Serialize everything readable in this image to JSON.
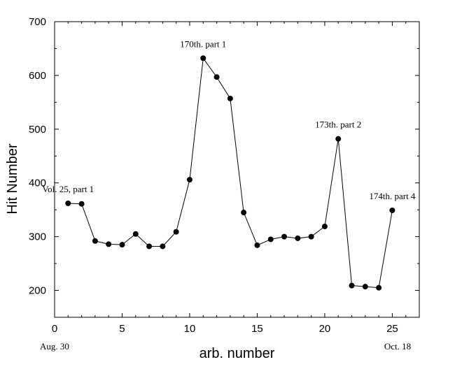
{
  "chart_data": {
    "type": "line",
    "xlabel": "arb. number",
    "ylabel": "Hit Number",
    "xlim": [
      0,
      27
    ],
    "ylim": [
      150,
      700
    ],
    "xticks": [
      0,
      5,
      10,
      15,
      20,
      25
    ],
    "yticks": [
      200,
      300,
      400,
      500,
      600,
      700
    ],
    "tick_labels_x": [
      "0",
      "5",
      "10",
      "15",
      "20",
      "25"
    ],
    "tick_labels_y": [
      "200",
      "300",
      "400",
      "500",
      "600",
      "700"
    ],
    "grid": false,
    "x": [
      1,
      2,
      3,
      4,
      5,
      6,
      7,
      8,
      9,
      10,
      11,
      12,
      13,
      14,
      15,
      16,
      17,
      18,
      19,
      20,
      21,
      22,
      23,
      24,
      25
    ],
    "values": [
      362,
      361,
      292,
      286,
      285,
      305,
      282,
      282,
      309,
      406,
      632,
      597,
      557,
      345,
      284,
      295,
      300,
      297,
      300,
      319,
      482,
      209,
      207,
      205,
      349
    ],
    "annotations": [
      {
        "text": "Vol. 25, part 1",
        "x": 1,
        "y": 362
      },
      {
        "text": "170th. part 1",
        "x": 11,
        "y": 632
      },
      {
        "text": "173th. part 2",
        "x": 21,
        "y": 482
      },
      {
        "text": "174th. part 4",
        "x": 25,
        "y": 349
      }
    ],
    "x_start_label": "Aug. 30",
    "x_end_label": "Oct. 18",
    "colors": {
      "line": "#000000",
      "marker": "#000000"
    }
  }
}
